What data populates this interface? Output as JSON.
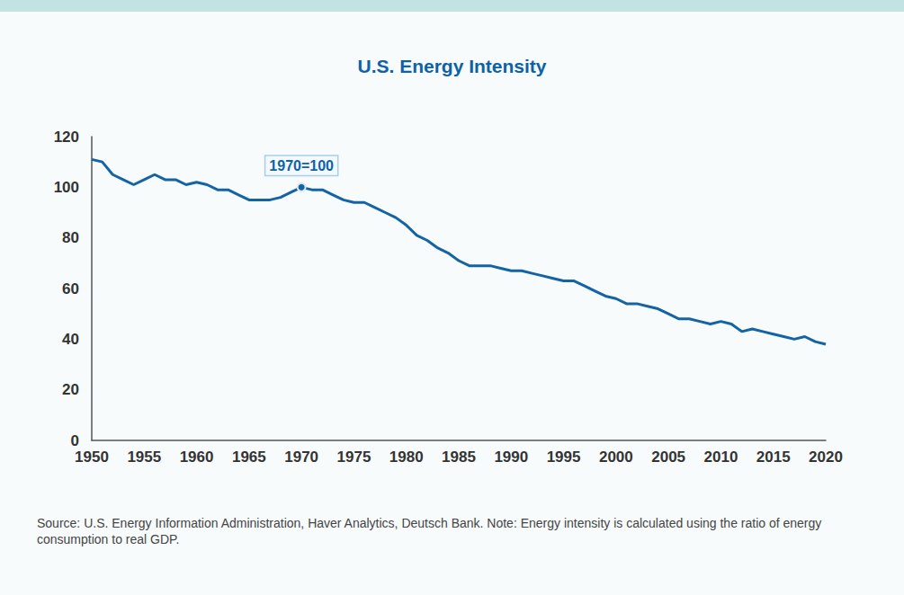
{
  "chart_data": {
    "type": "line",
    "title": "U.S. Energy Intensity",
    "x": [
      1950,
      1951,
      1952,
      1953,
      1954,
      1955,
      1956,
      1957,
      1958,
      1959,
      1960,
      1961,
      1962,
      1963,
      1964,
      1965,
      1966,
      1967,
      1968,
      1969,
      1970,
      1971,
      1972,
      1973,
      1974,
      1975,
      1976,
      1977,
      1978,
      1979,
      1980,
      1981,
      1982,
      1983,
      1984,
      1985,
      1986,
      1987,
      1988,
      1989,
      1990,
      1991,
      1992,
      1993,
      1994,
      1995,
      1996,
      1997,
      1998,
      1999,
      2000,
      2001,
      2002,
      2003,
      2004,
      2005,
      2006,
      2007,
      2008,
      2009,
      2010,
      2011,
      2012,
      2013,
      2014,
      2015,
      2016,
      2017,
      2018,
      2019,
      2020
    ],
    "values": [
      111,
      110,
      105,
      103,
      101,
      103,
      105,
      103,
      103,
      101,
      102,
      101,
      99,
      99,
      97,
      95,
      95,
      95,
      96,
      98,
      100,
      99,
      99,
      97,
      95,
      94,
      94,
      92,
      90,
      88,
      85,
      81,
      79,
      76,
      74,
      71,
      69,
      69,
      69,
      68,
      67,
      67,
      66,
      65,
      64,
      63,
      63,
      61,
      59,
      57,
      56,
      54,
      54,
      53,
      52,
      50,
      48,
      48,
      47,
      46,
      47,
      46,
      43,
      44,
      43,
      42,
      41,
      40,
      41,
      39,
      38
    ],
    "color": "#1464a5",
    "xlim": [
      1950,
      2020
    ],
    "xticks": [
      1950,
      1955,
      1960,
      1965,
      1970,
      1975,
      1980,
      1985,
      1990,
      1995,
      2000,
      2005,
      2010,
      2015,
      2020
    ],
    "ylim": [
      0,
      120
    ],
    "yticks": [
      0,
      20,
      40,
      60,
      80,
      100,
      120
    ],
    "grid": false,
    "annotations": [
      {
        "text": "1970=100",
        "x": 1970,
        "y": 100
      }
    ],
    "note": "Source: U.S. Energy Information Administration, Haver Analytics, Deutsch Bank. Note: Energy intensity is calculated using the ratio of energy consumption to real GDP."
  }
}
